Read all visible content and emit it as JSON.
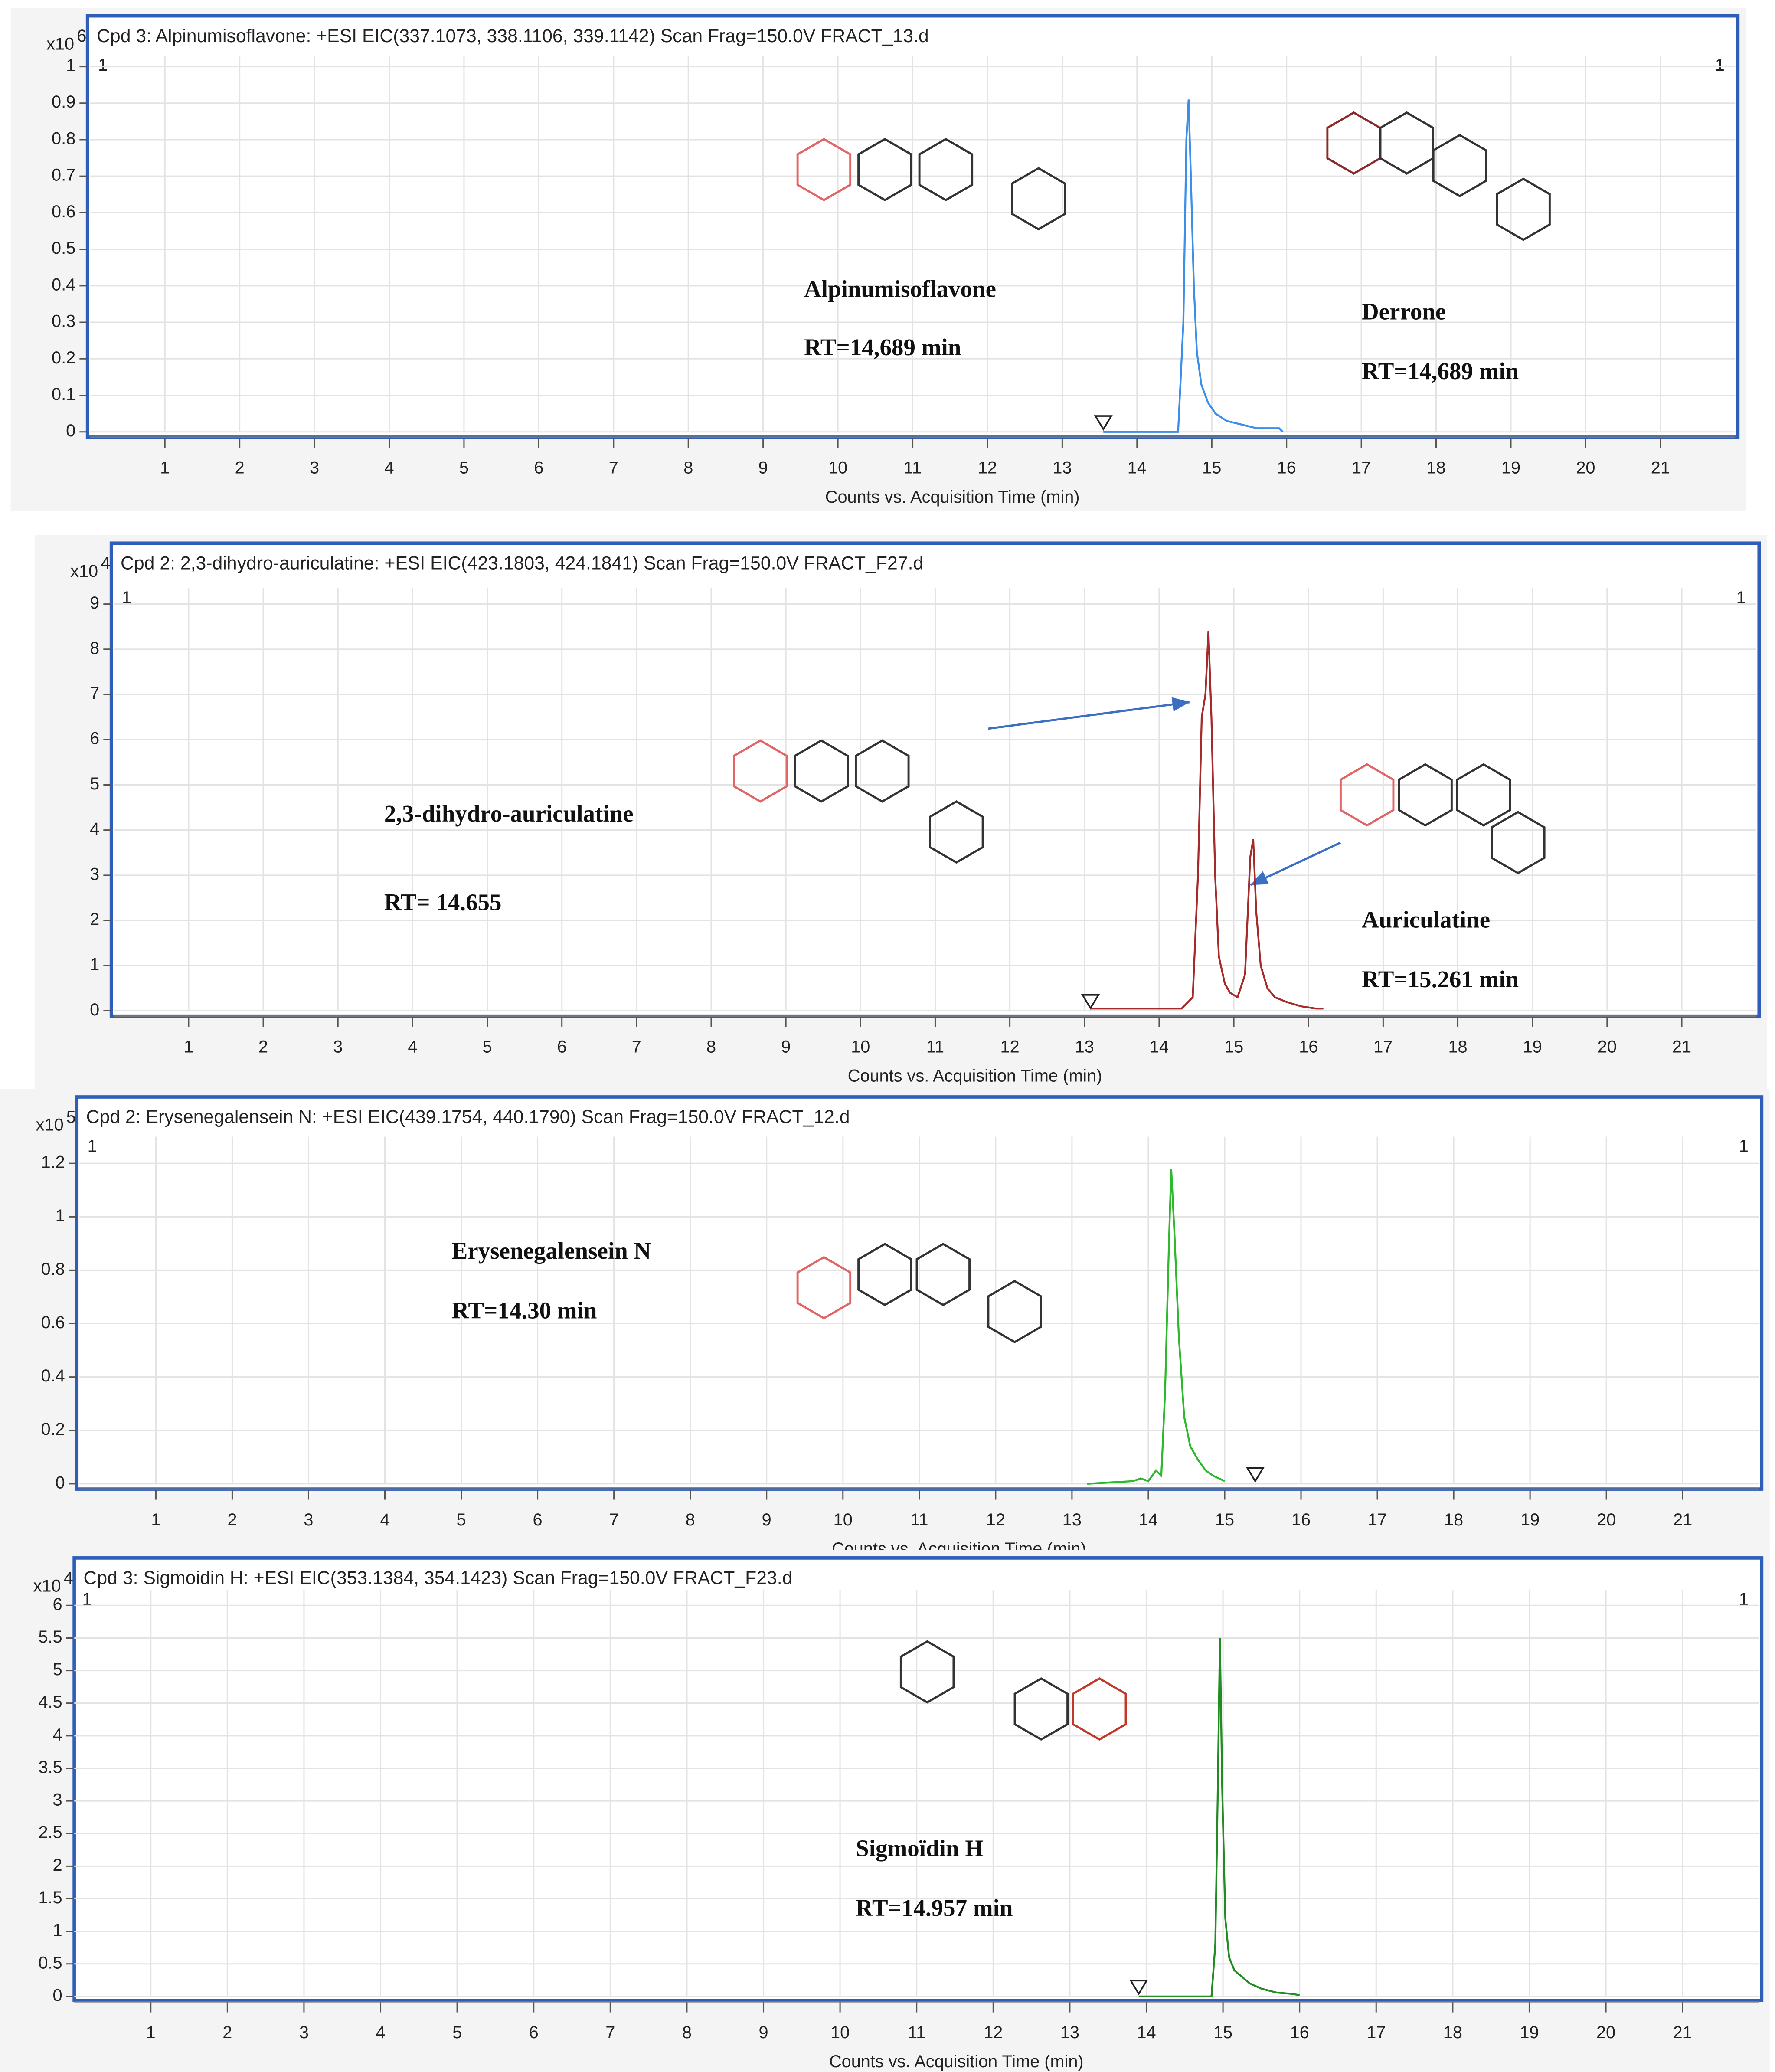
{
  "chart_data": [
    {
      "type": "line",
      "title": "Cpd 3: Alpinumisoflavone: +ESI EIC(337.1073, 338.1106, 339.1142) Scan Frag=150.0V FRACT_13.d",
      "y_scale_label": "x10",
      "y_scale_exponent": "6",
      "corner_labels": [
        "1",
        "1"
      ],
      "x_label": "Counts vs. Acquisition Time (min)",
      "color": "#3b8fe8",
      "grid": true,
      "xlim": [
        0,
        22
      ],
      "xticks": [
        1,
        2,
        3,
        4,
        5,
        6,
        7,
        8,
        9,
        10,
        11,
        12,
        13,
        14,
        15,
        16,
        17,
        18,
        19,
        20,
        21
      ],
      "ylim": [
        0,
        1.03
      ],
      "yticks": [
        0,
        0.1,
        0.2,
        0.3,
        0.4,
        0.5,
        0.6,
        0.7,
        0.8,
        0.9,
        1
      ],
      "marker_x": 13.55,
      "x": [
        13.55,
        14.55,
        14.62,
        14.66,
        14.69,
        14.72,
        14.76,
        14.8,
        14.86,
        14.95,
        15.05,
        15.2,
        15.4,
        15.6,
        15.8,
        15.9,
        15.95
      ],
      "values": [
        0,
        0,
        0.3,
        0.8,
        0.91,
        0.7,
        0.4,
        0.22,
        0.13,
        0.08,
        0.05,
        0.03,
        0.02,
        0.01,
        0.01,
        0.01,
        0
      ],
      "annotations": [
        "Alpinumisoflavone",
        "RT=14,689 min",
        "Derrone",
        "RT=14,689 min"
      ]
    },
    {
      "type": "line",
      "title": "Cpd 2: 2,3-dihydro-auriculatine: +ESI EIC(423.1803, 424.1841) Scan Frag=150.0V FRACT_F27.d",
      "y_scale_label": "x10",
      "y_scale_exponent": "4",
      "corner_labels": [
        "1",
        "1"
      ],
      "x_label": "Counts vs. Acquisition Time (min)",
      "color": "#a52a2a",
      "grid": true,
      "xlim": [
        0,
        22
      ],
      "xticks": [
        1,
        2,
        3,
        4,
        5,
        6,
        7,
        8,
        9,
        10,
        11,
        12,
        13,
        14,
        15,
        16,
        17,
        18,
        19,
        20,
        21
      ],
      "ylim": [
        0,
        9.35
      ],
      "yticks": [
        0,
        1,
        2,
        3,
        4,
        5,
        6,
        7,
        8,
        9
      ],
      "marker_x": 13.08,
      "x": [
        13.08,
        14.3,
        14.45,
        14.52,
        14.57,
        14.62,
        14.66,
        14.7,
        14.75,
        14.8,
        14.88,
        14.95,
        15.05,
        15.15,
        15.22,
        15.26,
        15.3,
        15.36,
        15.45,
        15.55,
        15.7,
        15.9,
        16.1,
        16.2
      ],
      "values": [
        0.05,
        0.05,
        0.3,
        3,
        6.5,
        7,
        8.4,
        6.5,
        3,
        1.2,
        0.6,
        0.4,
        0.3,
        0.8,
        3.4,
        3.8,
        2.2,
        1,
        0.5,
        0.3,
        0.2,
        0.1,
        0.05,
        0.05
      ],
      "annotations": [
        "2,3-dihydro-auriculatine",
        "RT= 14.655",
        "Auriculatine",
        "RT=15.261 min"
      ]
    },
    {
      "type": "line",
      "title": "Cpd 2: Erysenegalensein N: +ESI EIC(439.1754, 440.1790) Scan Frag=150.0V FRACT_12.d",
      "y_scale_label": "x10",
      "y_scale_exponent": "5",
      "corner_labels": [
        "1",
        "1"
      ],
      "x_label": "Counts vs. Acquisition Time (min)",
      "color": "#2db82d",
      "grid": true,
      "xlim": [
        0,
        22
      ],
      "xticks": [
        1,
        2,
        3,
        4,
        5,
        6,
        7,
        8,
        9,
        10,
        11,
        12,
        13,
        14,
        15,
        16,
        17,
        18,
        19,
        20,
        21
      ],
      "ylim": [
        0,
        1.3
      ],
      "yticks": [
        0,
        0.2,
        0.4,
        0.6,
        0.8,
        1,
        1.2
      ],
      "marker_x": 15.4,
      "x": [
        13.2,
        13.8,
        13.9,
        14.0,
        14.1,
        14.17,
        14.22,
        14.27,
        14.3,
        14.34,
        14.4,
        14.47,
        14.55,
        14.65,
        14.75,
        14.85,
        15.0
      ],
      "values": [
        0,
        0.01,
        0.02,
        0.01,
        0.05,
        0.03,
        0.35,
        0.9,
        1.18,
        0.95,
        0.55,
        0.25,
        0.14,
        0.09,
        0.05,
        0.03,
        0.01
      ],
      "annotations": [
        "Erysenegalensein N",
        "RT=14.30 min"
      ]
    },
    {
      "type": "line",
      "title": "Cpd 3: Sigmoidin H: +ESI EIC(353.1384, 354.1423) Scan Frag=150.0V FRACT_F23.d",
      "y_scale_label": "x10",
      "y_scale_exponent": "4",
      "corner_labels": [
        "1",
        "1"
      ],
      "x_label": "Counts vs. Acquisition Time (min)",
      "color": "#228b22",
      "grid": true,
      "xlim": [
        0,
        22
      ],
      "xticks": [
        1,
        2,
        3,
        4,
        5,
        6,
        7,
        8,
        9,
        10,
        11,
        12,
        13,
        14,
        15,
        16,
        17,
        18,
        19,
        20,
        21
      ],
      "ylim": [
        0,
        6.24
      ],
      "yticks": [
        0,
        0.5,
        1,
        1.5,
        2,
        2.5,
        3,
        3.5,
        4,
        4.5,
        5,
        5.5,
        6
      ],
      "marker_x": 13.9,
      "x": [
        13.9,
        14.85,
        14.9,
        14.93,
        14.96,
        14.99,
        15.03,
        15.08,
        15.15,
        15.25,
        15.35,
        15.5,
        15.7,
        15.9,
        16.0
      ],
      "values": [
        0,
        0,
        0.8,
        3,
        5.5,
        3.2,
        1.2,
        0.6,
        0.4,
        0.3,
        0.2,
        0.12,
        0.06,
        0.04,
        0.02
      ],
      "annotations": [
        "Sigmoïdin H",
        "RT=14.957 min"
      ]
    }
  ]
}
